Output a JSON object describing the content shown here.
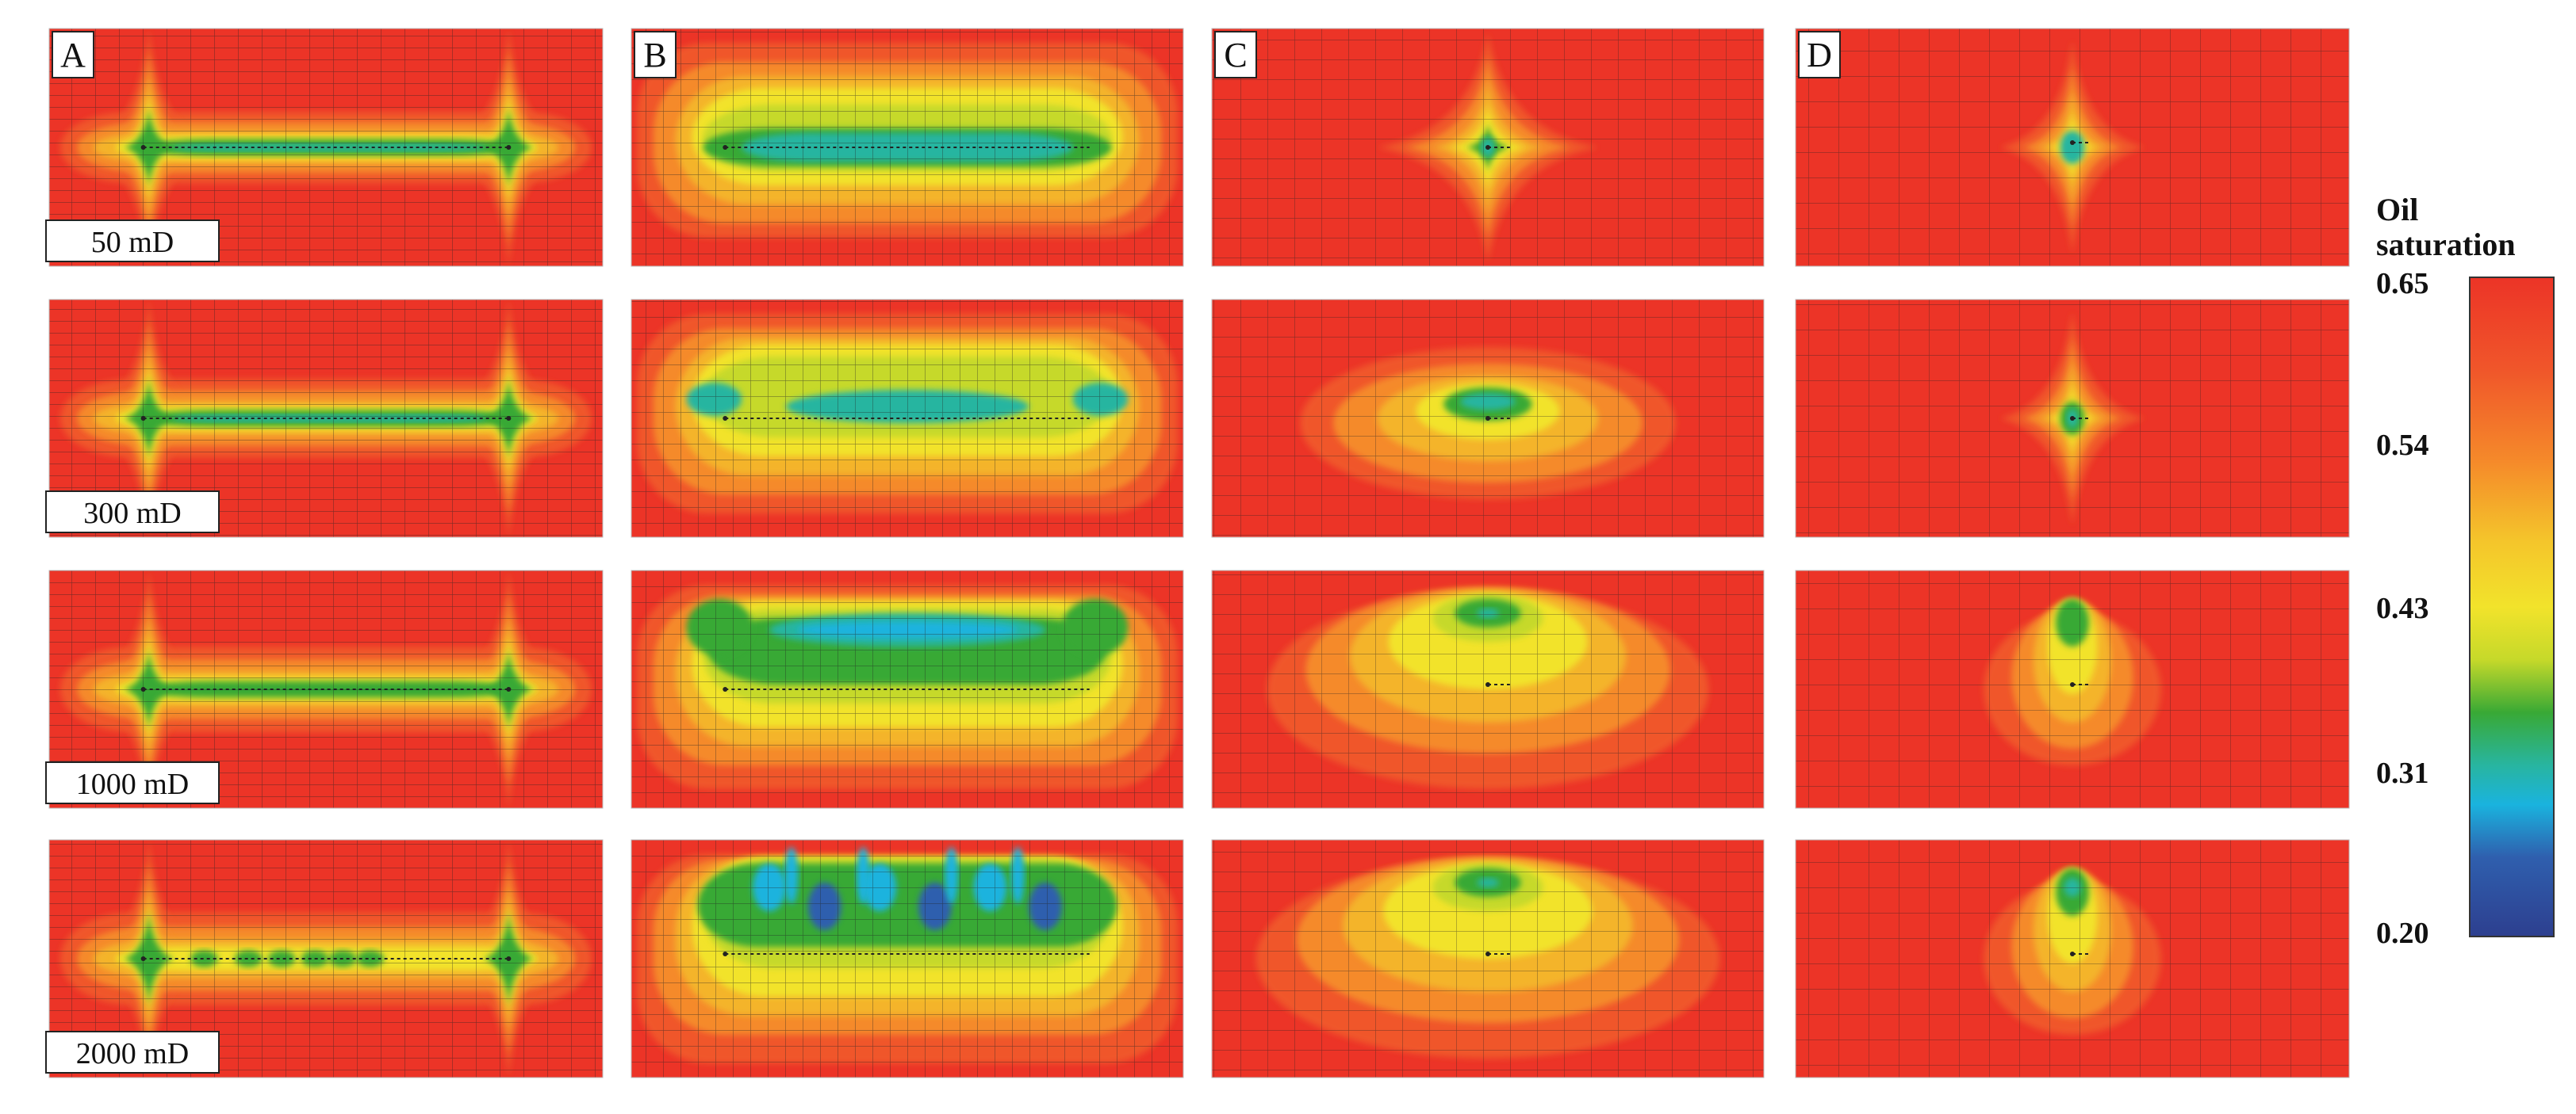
{
  "columns": [
    {
      "label": "A"
    },
    {
      "label": "B"
    },
    {
      "label": "C"
    },
    {
      "label": "D"
    }
  ],
  "rows": [
    {
      "label": "50 mD"
    },
    {
      "label": "300 mD"
    },
    {
      "label": "1000 mD"
    },
    {
      "label": "2000 mD"
    }
  ],
  "legend": {
    "title_line1": "Oil",
    "title_line2": "saturation",
    "ticks": [
      "0.65",
      "0.54",
      "0.43",
      "0.31",
      "0.20"
    ],
    "max": 0.65,
    "min": 0.2,
    "colors": [
      "#ec3427",
      "#f58a2a",
      "#f2e32b",
      "#c6d92a",
      "#39a935",
      "#28b5a0",
      "#1ab3de",
      "#2f5fae",
      "#2d3f8f"
    ]
  },
  "colors": {
    "background_field": "#ec3427",
    "grid_line": "#222222"
  }
}
